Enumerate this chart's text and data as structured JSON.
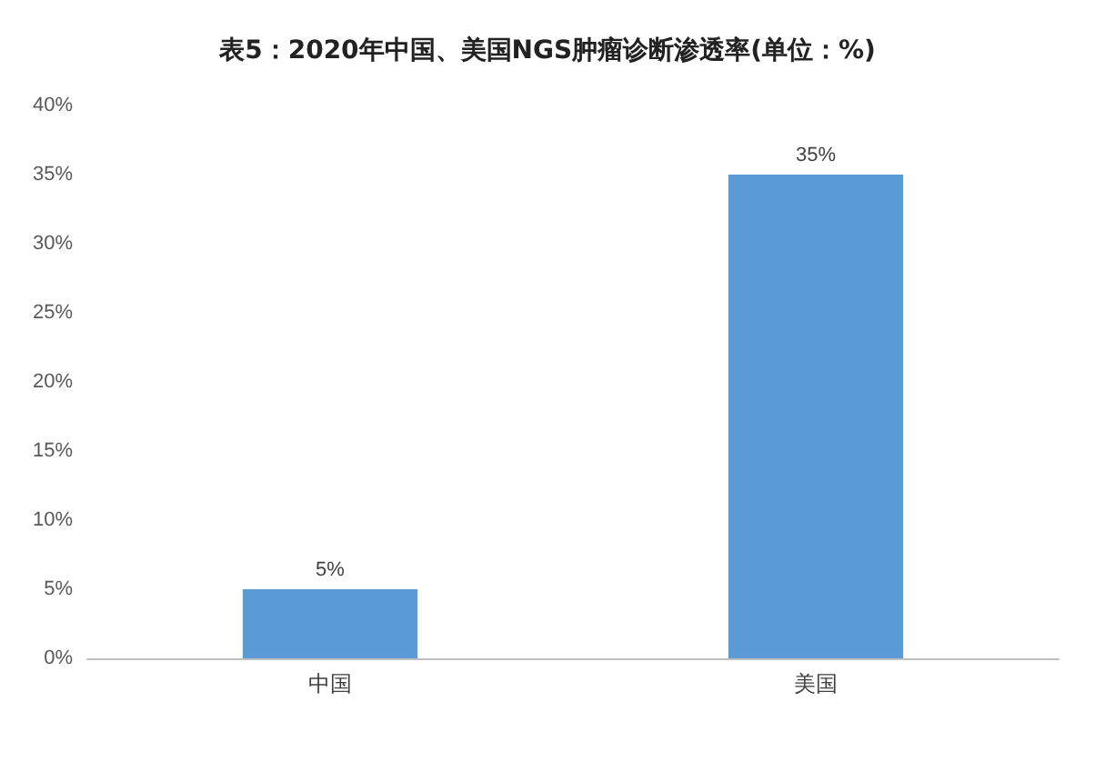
{
  "chart_data": {
    "type": "bar",
    "title": "表5：2020年中国、美国NGS肿瘤诊断渗透率(单位：%)",
    "categories": [
      "中国",
      "美国"
    ],
    "values": [
      5,
      35
    ],
    "value_labels": [
      "5%",
      "35%"
    ],
    "color": "#5b9bd5",
    "ylim": [
      0,
      40
    ],
    "yticks": [
      {
        "value": 0,
        "label": "0%"
      },
      {
        "value": 5,
        "label": "5%"
      },
      {
        "value": 10,
        "label": "10%"
      },
      {
        "value": 15,
        "label": "15%"
      },
      {
        "value": 20,
        "label": "20%"
      },
      {
        "value": 25,
        "label": "25%"
      },
      {
        "value": 30,
        "label": "30%"
      },
      {
        "value": 35,
        "label": "35%"
      },
      {
        "value": 40,
        "label": "40%"
      }
    ],
    "grid": false
  }
}
